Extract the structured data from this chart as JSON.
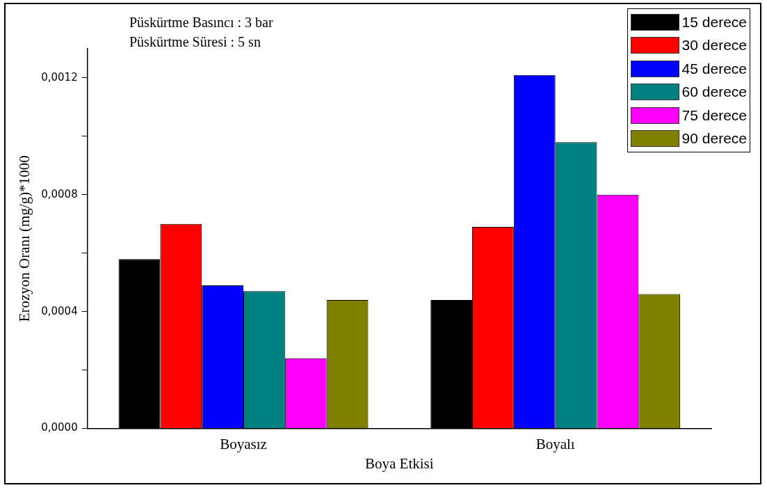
{
  "chart_data": {
    "type": "bar",
    "xlabel": "Boya Etkisi",
    "ylabel": "Erozyon Oranı (mg/g)*1000",
    "annotations": [
      "Püskürtme Basıncı : 3 bar",
      "Püskürtme Süresi : 5 sn"
    ],
    "categories": [
      "Boyasız",
      "Boyalı"
    ],
    "series": [
      {
        "name": "15 derece",
        "color": "#000000",
        "values": [
          0.00058,
          0.00044
        ]
      },
      {
        "name": "30 derece",
        "color": "#ff0000",
        "values": [
          0.0007,
          0.00069
        ]
      },
      {
        "name": "45 derece",
        "color": "#0000ff",
        "values": [
          0.00049,
          0.00121
        ]
      },
      {
        "name": "60 derece",
        "color": "#008080",
        "values": [
          0.00047,
          0.00098
        ]
      },
      {
        "name": "75 derece",
        "color": "#ff00ff",
        "values": [
          0.00024,
          0.0008
        ]
      },
      {
        "name": "90 derece",
        "color": "#808000",
        "values": [
          0.00044,
          0.00046
        ]
      }
    ],
    "ylim": [
      0,
      0.0013
    ],
    "yticks": [
      {
        "value": 0,
        "label": "0,0000"
      },
      {
        "value": 0.0002,
        "label": null
      },
      {
        "value": 0.0004,
        "label": "0,0004"
      },
      {
        "value": 0.0006,
        "label": null
      },
      {
        "value": 0.0008,
        "label": "0,0008"
      },
      {
        "value": 0.001,
        "label": null
      },
      {
        "value": 0.0012,
        "label": "0,0012"
      }
    ],
    "grid": false,
    "legend": "top right"
  }
}
